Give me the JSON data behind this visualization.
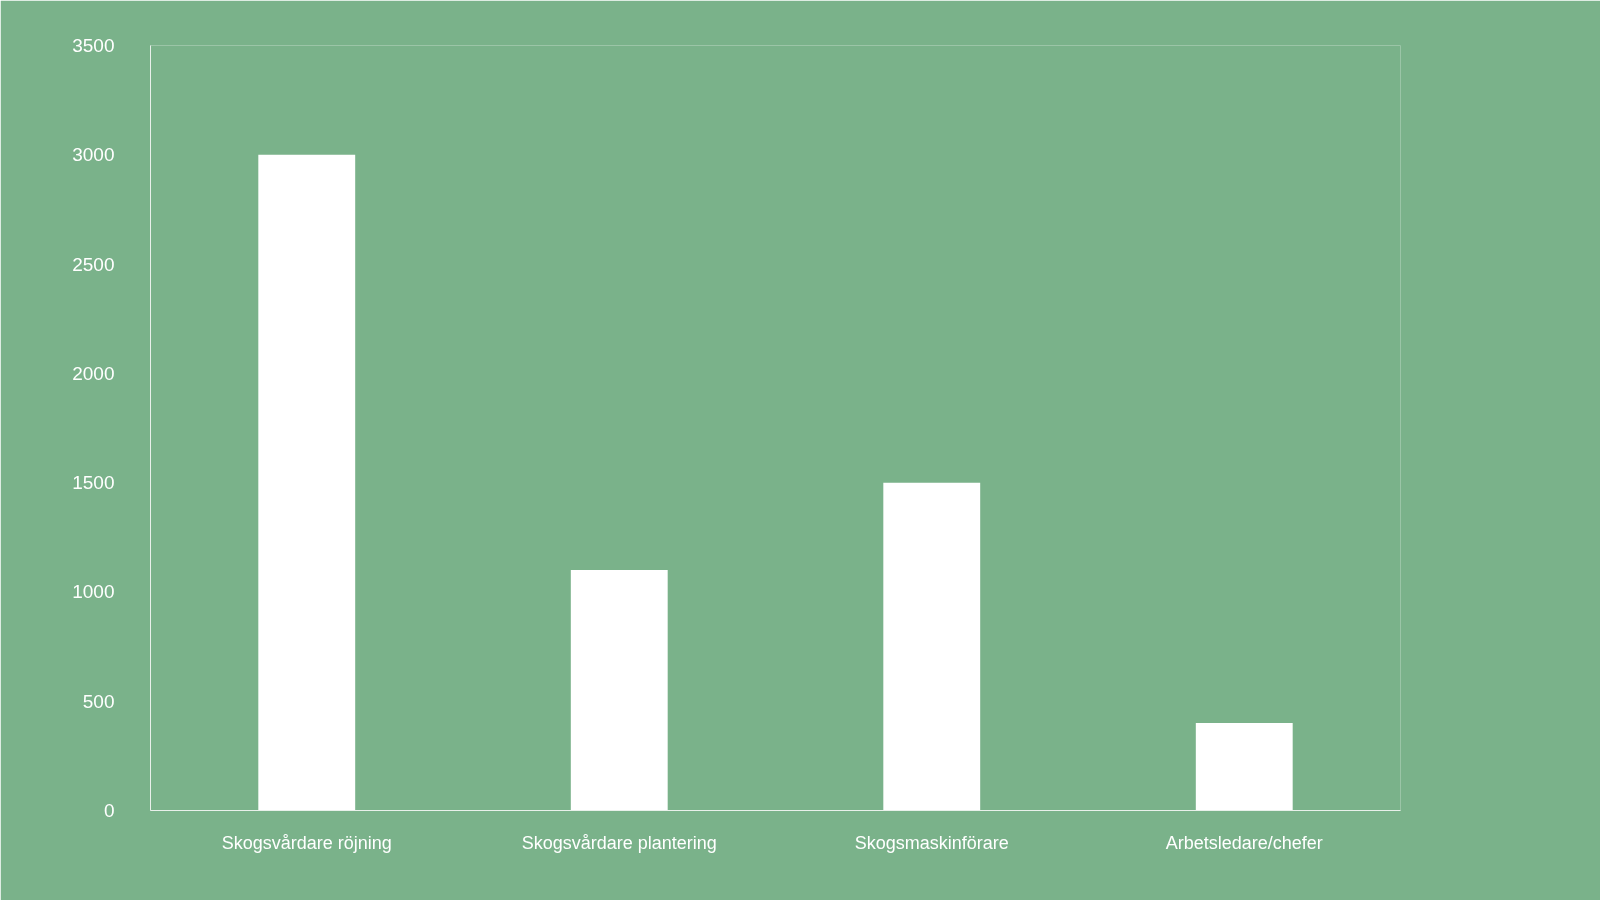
{
  "chart_data": {
    "type": "bar",
    "categories": [
      "Skogsvårdare röjning",
      "Skogsvårdare plantering",
      "Skogsmaskinförare",
      "Arbetsledare/chefer"
    ],
    "values": [
      3000,
      1100,
      1500,
      400
    ],
    "color": "#ffffff",
    "ylim": [
      0,
      3500
    ],
    "yticks": [
      0,
      500,
      1000,
      1500,
      2000,
      2500,
      3000,
      3500
    ],
    "grid": false
  }
}
